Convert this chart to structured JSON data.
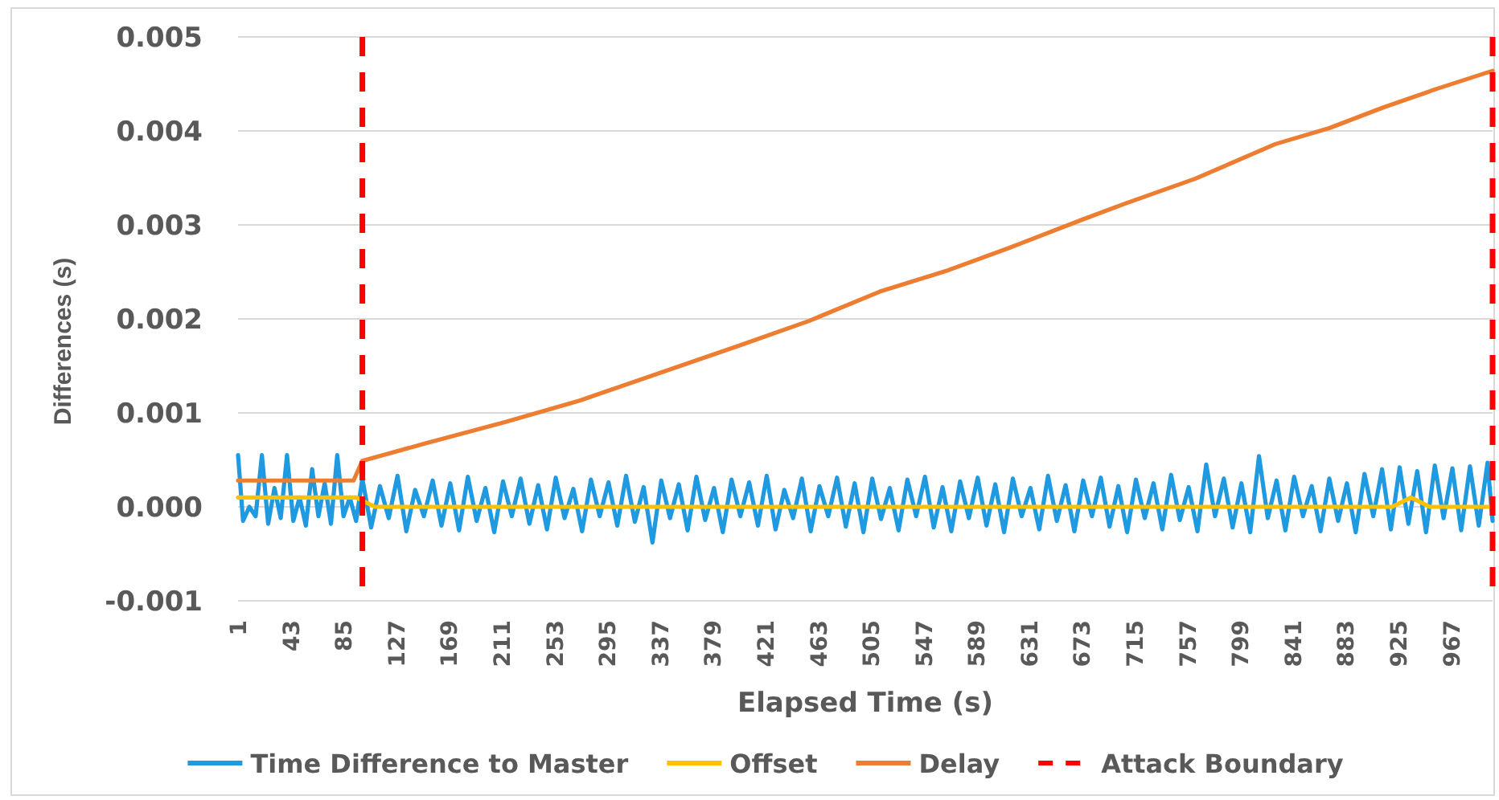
{
  "chart_data": {
    "type": "line",
    "xlabel": "Elapsed Time (s)",
    "ylabel": "Differences (s)",
    "xlim": [
      1,
      1000
    ],
    "xticks": [
      1,
      43,
      85,
      127,
      169,
      211,
      253,
      295,
      337,
      379,
      421,
      463,
      505,
      547,
      589,
      631,
      673,
      715,
      757,
      799,
      841,
      883,
      925,
      967
    ],
    "ylim": [
      -0.001,
      0.005
    ],
    "yticks": [
      -0.001,
      {
        "value": 0,
        "label": "0.000"
      },
      0.001,
      0.002,
      0.003,
      0.004,
      0.005
    ],
    "grid": "y",
    "legend": "bottom",
    "series": [
      {
        "name": "Time Difference to Master",
        "color": "#1f9ae0",
        "x": [
          1,
          5,
          10,
          15,
          20,
          25,
          30,
          35,
          40,
          45,
          50,
          55,
          60,
          65,
          70,
          75,
          80,
          85,
          90,
          95,
          100,
          107,
          114,
          121,
          128,
          135,
          142,
          149,
          156,
          163,
          170,
          177,
          184,
          191,
          198,
          205,
          212,
          219,
          226,
          233,
          240,
          247,
          254,
          261,
          268,
          275,
          282,
          289,
          296,
          303,
          310,
          317,
          324,
          331,
          338,
          345,
          352,
          359,
          366,
          373,
          380,
          387,
          394,
          401,
          408,
          415,
          422,
          429,
          436,
          443,
          450,
          457,
          464,
          471,
          478,
          485,
          492,
          499,
          506,
          513,
          520,
          527,
          534,
          541,
          548,
          555,
          562,
          569,
          576,
          583,
          590,
          597,
          604,
          611,
          618,
          625,
          632,
          639,
          646,
          653,
          660,
          667,
          674,
          681,
          688,
          695,
          702,
          709,
          716,
          723,
          730,
          737,
          744,
          751,
          758,
          765,
          772,
          779,
          786,
          793,
          800,
          807,
          814,
          821,
          828,
          835,
          842,
          849,
          856,
          863,
          870,
          877,
          884,
          891,
          898,
          905,
          912,
          919,
          926,
          933,
          940,
          947,
          954,
          961,
          968,
          975,
          982,
          989,
          996,
          1000
        ],
        "values": [
          0.00055,
          -0.00015,
          0,
          -0.0001,
          0.00055,
          -0.00018,
          0.0002,
          -0.00012,
          0.00055,
          -0.00015,
          0.0001,
          -0.0002,
          0.0004,
          -0.0001,
          0.00025,
          -0.00018,
          0.00055,
          -0.0001,
          0.0001,
          -0.00015,
          0.0003,
          -0.00022,
          0.00022,
          -0.00012,
          0.00033,
          -0.00026,
          0.00018,
          -0.0001,
          0.00028,
          -0.0002,
          0.00025,
          -0.00025,
          0.00032,
          -0.00015,
          0.0002,
          -0.00027,
          0.00027,
          -0.0001,
          0.0003,
          -0.00018,
          0.00023,
          -0.00024,
          0.00031,
          -0.00012,
          0.00019,
          -0.00026,
          0.00029,
          -0.0001,
          0.00026,
          -0.0002,
          0.00033,
          -0.00016,
          0.00021,
          -0.00038,
          0.00028,
          -0.00012,
          0.00024,
          -0.00025,
          0.00032,
          -0.00014,
          0.0002,
          -0.00027,
          0.00029,
          -0.0001,
          0.00026,
          -0.0002,
          0.00033,
          -0.00024,
          0.00018,
          -0.00012,
          0.0003,
          -0.00026,
          0.00022,
          -0.0001,
          0.00031,
          -0.00021,
          0.00025,
          -0.00027,
          0.0003,
          -0.00013,
          0.0002,
          -0.00025,
          0.00029,
          -0.0001,
          0.00032,
          -0.00022,
          0.00021,
          -0.00026,
          0.00027,
          -0.00012,
          0.00031,
          -0.0002,
          0.00024,
          -0.00027,
          0.0003,
          -0.0001,
          0.0002,
          -0.00024,
          0.00033,
          -0.00015,
          0.00023,
          -0.00026,
          0.00028,
          -0.0001,
          0.00031,
          -0.00021,
          0.00022,
          -0.00027,
          0.00029,
          -0.00012,
          0.00025,
          -0.00024,
          0.00034,
          -0.00014,
          0.00021,
          -0.00026,
          0.00045,
          -0.0001,
          0.0003,
          -0.00022,
          0.00025,
          -0.00027,
          0.00054,
          -0.00012,
          0.00028,
          -0.00025,
          0.00032,
          -0.0001,
          0.00022,
          -0.00026,
          0.0003,
          -0.00015,
          0.00025,
          -0.00027,
          0.00035,
          -0.0001,
          0.0004,
          -0.00024,
          0.00042,
          -0.00018,
          0.00038,
          -0.00027,
          0.00044,
          -0.00012,
          0.00041,
          -0.00025,
          0.00043,
          -0.0002,
          0.00047,
          -0.00015
        ]
      },
      {
        "name": "Offset",
        "color": "#ffc000",
        "x": [
          1,
          20,
          40,
          60,
          80,
          95,
          110,
          920,
          935,
          950,
          1000
        ],
        "values": [
          0.0001,
          0.0001,
          0.0001,
          0.0001,
          0.0001,
          0.0001,
          0,
          0,
          0.0001,
          0,
          0
        ]
      },
      {
        "name": "Delay",
        "color": "#ed7d31",
        "x": [
          1,
          93,
          100,
          149,
          213,
          273,
          401,
          456,
          512,
          567,
          614,
          674,
          708,
          763,
          827,
          870,
          913,
          956,
          1000
        ],
        "values": [
          0.00028,
          0.00028,
          0.00049,
          0.00067,
          0.0009,
          0.00113,
          0.00172,
          0.00198,
          0.00229,
          0.00252,
          0.00275,
          0.00306,
          0.00323,
          0.00349,
          0.00386,
          0.00403,
          0.00425,
          0.00445,
          0.00464
        ]
      }
    ],
    "ref_lines": [
      {
        "axis": "x",
        "value": 100,
        "label": "Attack Boundary",
        "color": "#ff0000",
        "line_style": "dashed"
      },
      {
        "axis": "x",
        "value": 1000,
        "color": "#ff0000",
        "line_style": "dashed"
      }
    ]
  }
}
